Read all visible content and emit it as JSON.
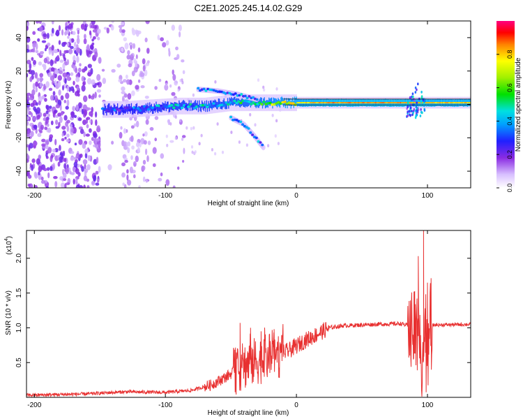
{
  "chart_data": [
    {
      "type": "heatmap",
      "title": "C2E1.2025.245.14.02.G29",
      "xlabel": "Height of straight line (km)",
      "ylabel": "Frequency (Hz)",
      "xlim": [
        -206,
        133
      ],
      "ylim": [
        -50,
        50
      ],
      "x_ticks": [
        -200,
        -100,
        0,
        100
      ],
      "y_ticks": [
        40,
        20,
        0,
        -20,
        -40
      ],
      "colorbar": {
        "label": "Normalized spectral amplitude",
        "range": [
          0,
          1
        ],
        "ticks": [
          "0.0",
          "0.2",
          "0.4",
          "0.6",
          "0.8"
        ],
        "tick_values": [
          0.0,
          0.2,
          0.4,
          0.6,
          0.8
        ]
      },
      "features": {
        "noise_region_x": [
          -206,
          -100
        ],
        "main_signal_trace": [
          {
            "x": -148,
            "y": -3,
            "amp": 0.3
          },
          {
            "x": -130,
            "y": -3,
            "amp": 0.3
          },
          {
            "x": -110,
            "y": -2,
            "amp": 0.35
          },
          {
            "x": -90,
            "y": -1,
            "amp": 0.4
          },
          {
            "x": -70,
            "y": -1,
            "amp": 0.4
          },
          {
            "x": -50,
            "y": 1,
            "amp": 0.45
          },
          {
            "x": -30,
            "y": 1,
            "amp": 0.55
          },
          {
            "x": -10,
            "y": 1,
            "amp": 0.7
          },
          {
            "x": 10,
            "y": 1,
            "amp": 0.8
          },
          {
            "x": 30,
            "y": 1,
            "amp": 0.85
          },
          {
            "x": 60,
            "y": 1,
            "amp": 0.85
          },
          {
            "x": 80,
            "y": 1,
            "amp": 0.85
          },
          {
            "x": 100,
            "y": 1,
            "amp": 0.8
          },
          {
            "x": 133,
            "y": 1,
            "amp": 0.8
          }
        ],
        "upper_branch": [
          {
            "x": -75,
            "y": 9
          },
          {
            "x": -60,
            "y": 8
          },
          {
            "x": -45,
            "y": 6
          },
          {
            "x": -30,
            "y": 3
          }
        ],
        "lower_branch": [
          {
            "x": -50,
            "y": -8
          },
          {
            "x": -40,
            "y": -12
          },
          {
            "x": -32,
            "y": -19
          },
          {
            "x": -25,
            "y": -26
          }
        ],
        "burst_near_x": 92
      }
    },
    {
      "type": "line",
      "xlabel": "Height of straight line (km)",
      "ylabel": "SNR (10 * v/v)",
      "y_multiplier": "(x10",
      "y_multiplier_exp": "4",
      "xlim": [
        -206,
        133
      ],
      "ylim": [
        0,
        2.4
      ],
      "x_ticks": [
        -200,
        -100,
        0,
        100
      ],
      "y_ticks": [
        0.5,
        1.0,
        1.5,
        2.0
      ],
      "color": "#e83030",
      "envelope": [
        {
          "x": -206,
          "y": 0.03
        },
        {
          "x": -160,
          "y": 0.05
        },
        {
          "x": -130,
          "y": 0.08
        },
        {
          "x": -100,
          "y": 0.07
        },
        {
          "x": -80,
          "y": 0.1
        },
        {
          "x": -65,
          "y": 0.18
        },
        {
          "x": -55,
          "y": 0.28
        },
        {
          "x": -45,
          "y": 0.4
        },
        {
          "x": -35,
          "y": 0.5
        },
        {
          "x": -25,
          "y": 0.55
        },
        {
          "x": -15,
          "y": 0.6
        },
        {
          "x": -5,
          "y": 0.68
        },
        {
          "x": 5,
          "y": 0.8
        },
        {
          "x": 15,
          "y": 0.9
        },
        {
          "x": 25,
          "y": 1.0
        },
        {
          "x": 35,
          "y": 1.03
        },
        {
          "x": 60,
          "y": 1.05
        },
        {
          "x": 80,
          "y": 1.06
        },
        {
          "x": 90,
          "y": 1.0
        },
        {
          "x": 97,
          "y": 0.6
        },
        {
          "x": 103,
          "y": 1.04
        },
        {
          "x": 133,
          "y": 1.05
        }
      ],
      "peaks": [
        {
          "x": -43,
          "y": 1.07
        },
        {
          "x": -35,
          "y": 1.0
        },
        {
          "x": -27,
          "y": 0.95
        },
        {
          "x": -17,
          "y": 0.98
        },
        {
          "x": 97,
          "y": 2.4
        },
        {
          "x": 93,
          "y": 2.03
        },
        {
          "x": 100,
          "y": 1.65
        }
      ],
      "title_labels": {
        "y_small": "(x10"
      }
    }
  ]
}
